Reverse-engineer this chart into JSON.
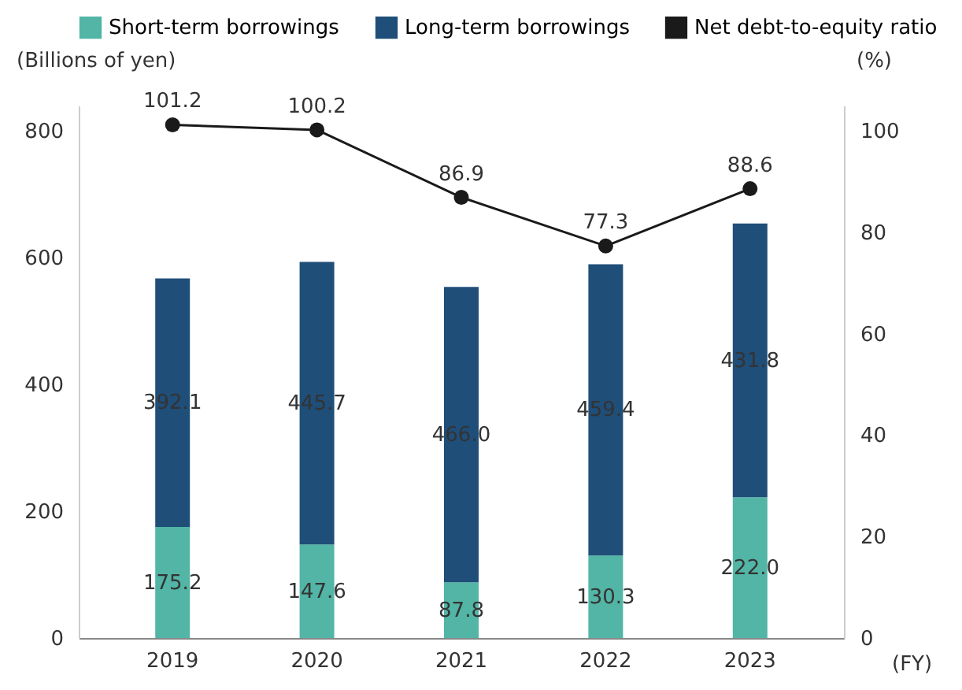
{
  "chart_data": {
    "type": "bar",
    "stacked": true,
    "categories": [
      "2019",
      "2020",
      "2021",
      "2022",
      "2023"
    ],
    "series": [
      {
        "name": "Short-term borrowings",
        "color": "#52b5a5",
        "values": [
          175.2,
          147.6,
          87.8,
          130.3,
          222.0
        ],
        "value_labels": [
          "175.2",
          "147.6",
          "87.8",
          "130.3",
          "222.0"
        ]
      },
      {
        "name": "Long-term borrowings",
        "color": "#1f4e79",
        "values": [
          392.1,
          445.7,
          466.0,
          459.4,
          431.8
        ],
        "value_labels": [
          "392.1",
          "445.7",
          "466.0",
          "459.4",
          "431.8"
        ]
      },
      {
        "name": "Net debt-to-equity ratio",
        "type": "line",
        "axis": "y2",
        "color": "#1a1a1a",
        "marker": "circle",
        "values": [
          101.2,
          100.2,
          86.9,
          77.3,
          88.6
        ],
        "value_labels": [
          "101.2",
          "100.2",
          "86.9",
          "77.3",
          "88.6"
        ]
      }
    ],
    "ylabel": "(Billions of yen)",
    "y2label": "(%)",
    "xlabel": "(FY)",
    "ylim": [
      0,
      840
    ],
    "yticks": [
      0,
      200,
      400,
      600,
      800
    ],
    "y2lim": [
      0,
      105
    ],
    "y2ticks": [
      0,
      20,
      40,
      60,
      80,
      100
    ],
    "grid": false,
    "legend": "top"
  }
}
